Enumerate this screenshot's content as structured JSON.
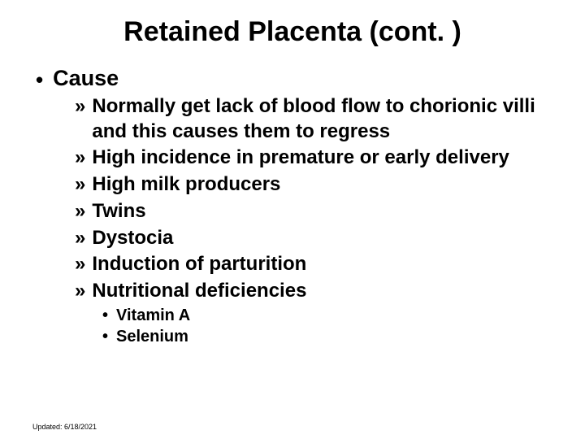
{
  "title": "Retained Placenta (cont. )",
  "level1_bullet": "•",
  "level2_bullet": "»",
  "level3_bullet": "•",
  "cause_label": "Cause",
  "causes": [
    "Normally get lack of blood flow to chorionic villi and this causes them to regress",
    "High incidence in premature or early delivery",
    "High milk producers",
    "Twins",
    "Dystocia",
    "Induction of parturition",
    "Nutritional deficiencies"
  ],
  "deficiencies": [
    "Vitamin A",
    "Selenium"
  ],
  "footer": "Updated: 6/18/2021",
  "colors": {
    "background": "#ffffff",
    "text": "#000000"
  }
}
